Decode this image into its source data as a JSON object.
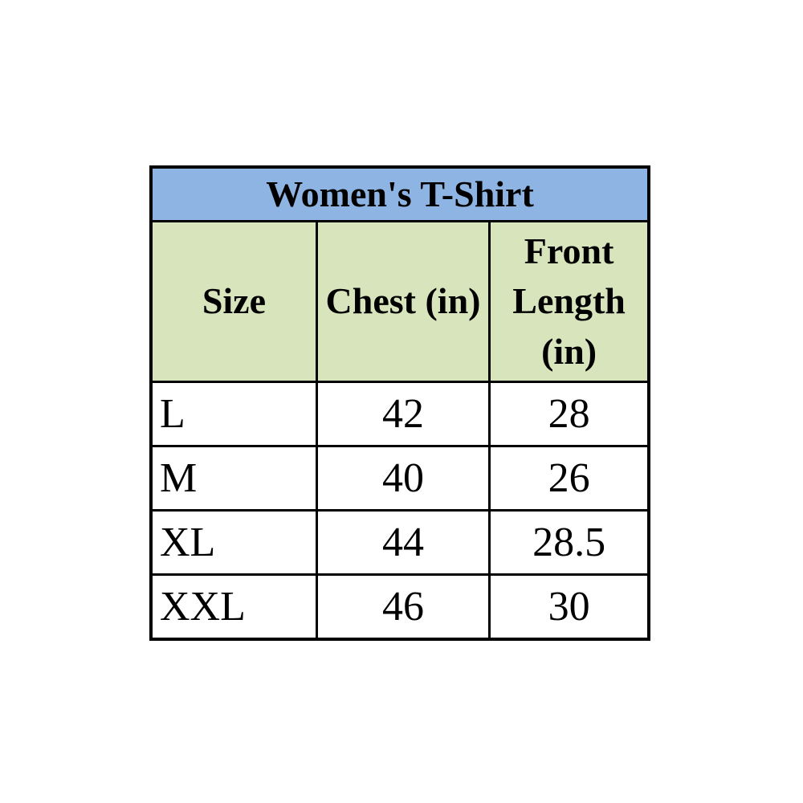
{
  "table": {
    "title": "Women's T-Shirt",
    "columns": [
      "Size",
      "Chest (in)",
      "Front Length (in)"
    ],
    "rows": [
      {
        "size": "L",
        "chest_in": "42",
        "front_length_in": "28"
      },
      {
        "size": "M",
        "chest_in": "40",
        "front_length_in": "26"
      },
      {
        "size": "XL",
        "chest_in": "44",
        "front_length_in": "28.5"
      },
      {
        "size": "XXL",
        "chest_in": "46",
        "front_length_in": "30"
      }
    ],
    "colors": {
      "title_bg": "#8db4e2",
      "header_bg": "#d8e4bc",
      "row_bg": "#ffffff",
      "border": "#000000",
      "text": "#000000"
    }
  },
  "chart_data": {
    "type": "table",
    "title": "Women's T-Shirt",
    "columns": [
      "Size",
      "Chest (in)",
      "Front Length (in)"
    ],
    "rows": [
      [
        "L",
        42,
        28
      ],
      [
        "M",
        40,
        26
      ],
      [
        "XL",
        44,
        28.5
      ],
      [
        "XXL",
        46,
        30
      ]
    ],
    "layout_hints": {
      "title_band_color": "#8db4e2",
      "header_band_color": "#d8e4bc",
      "grid": true,
      "size_column_align": "left",
      "number_columns_align": "center"
    }
  }
}
